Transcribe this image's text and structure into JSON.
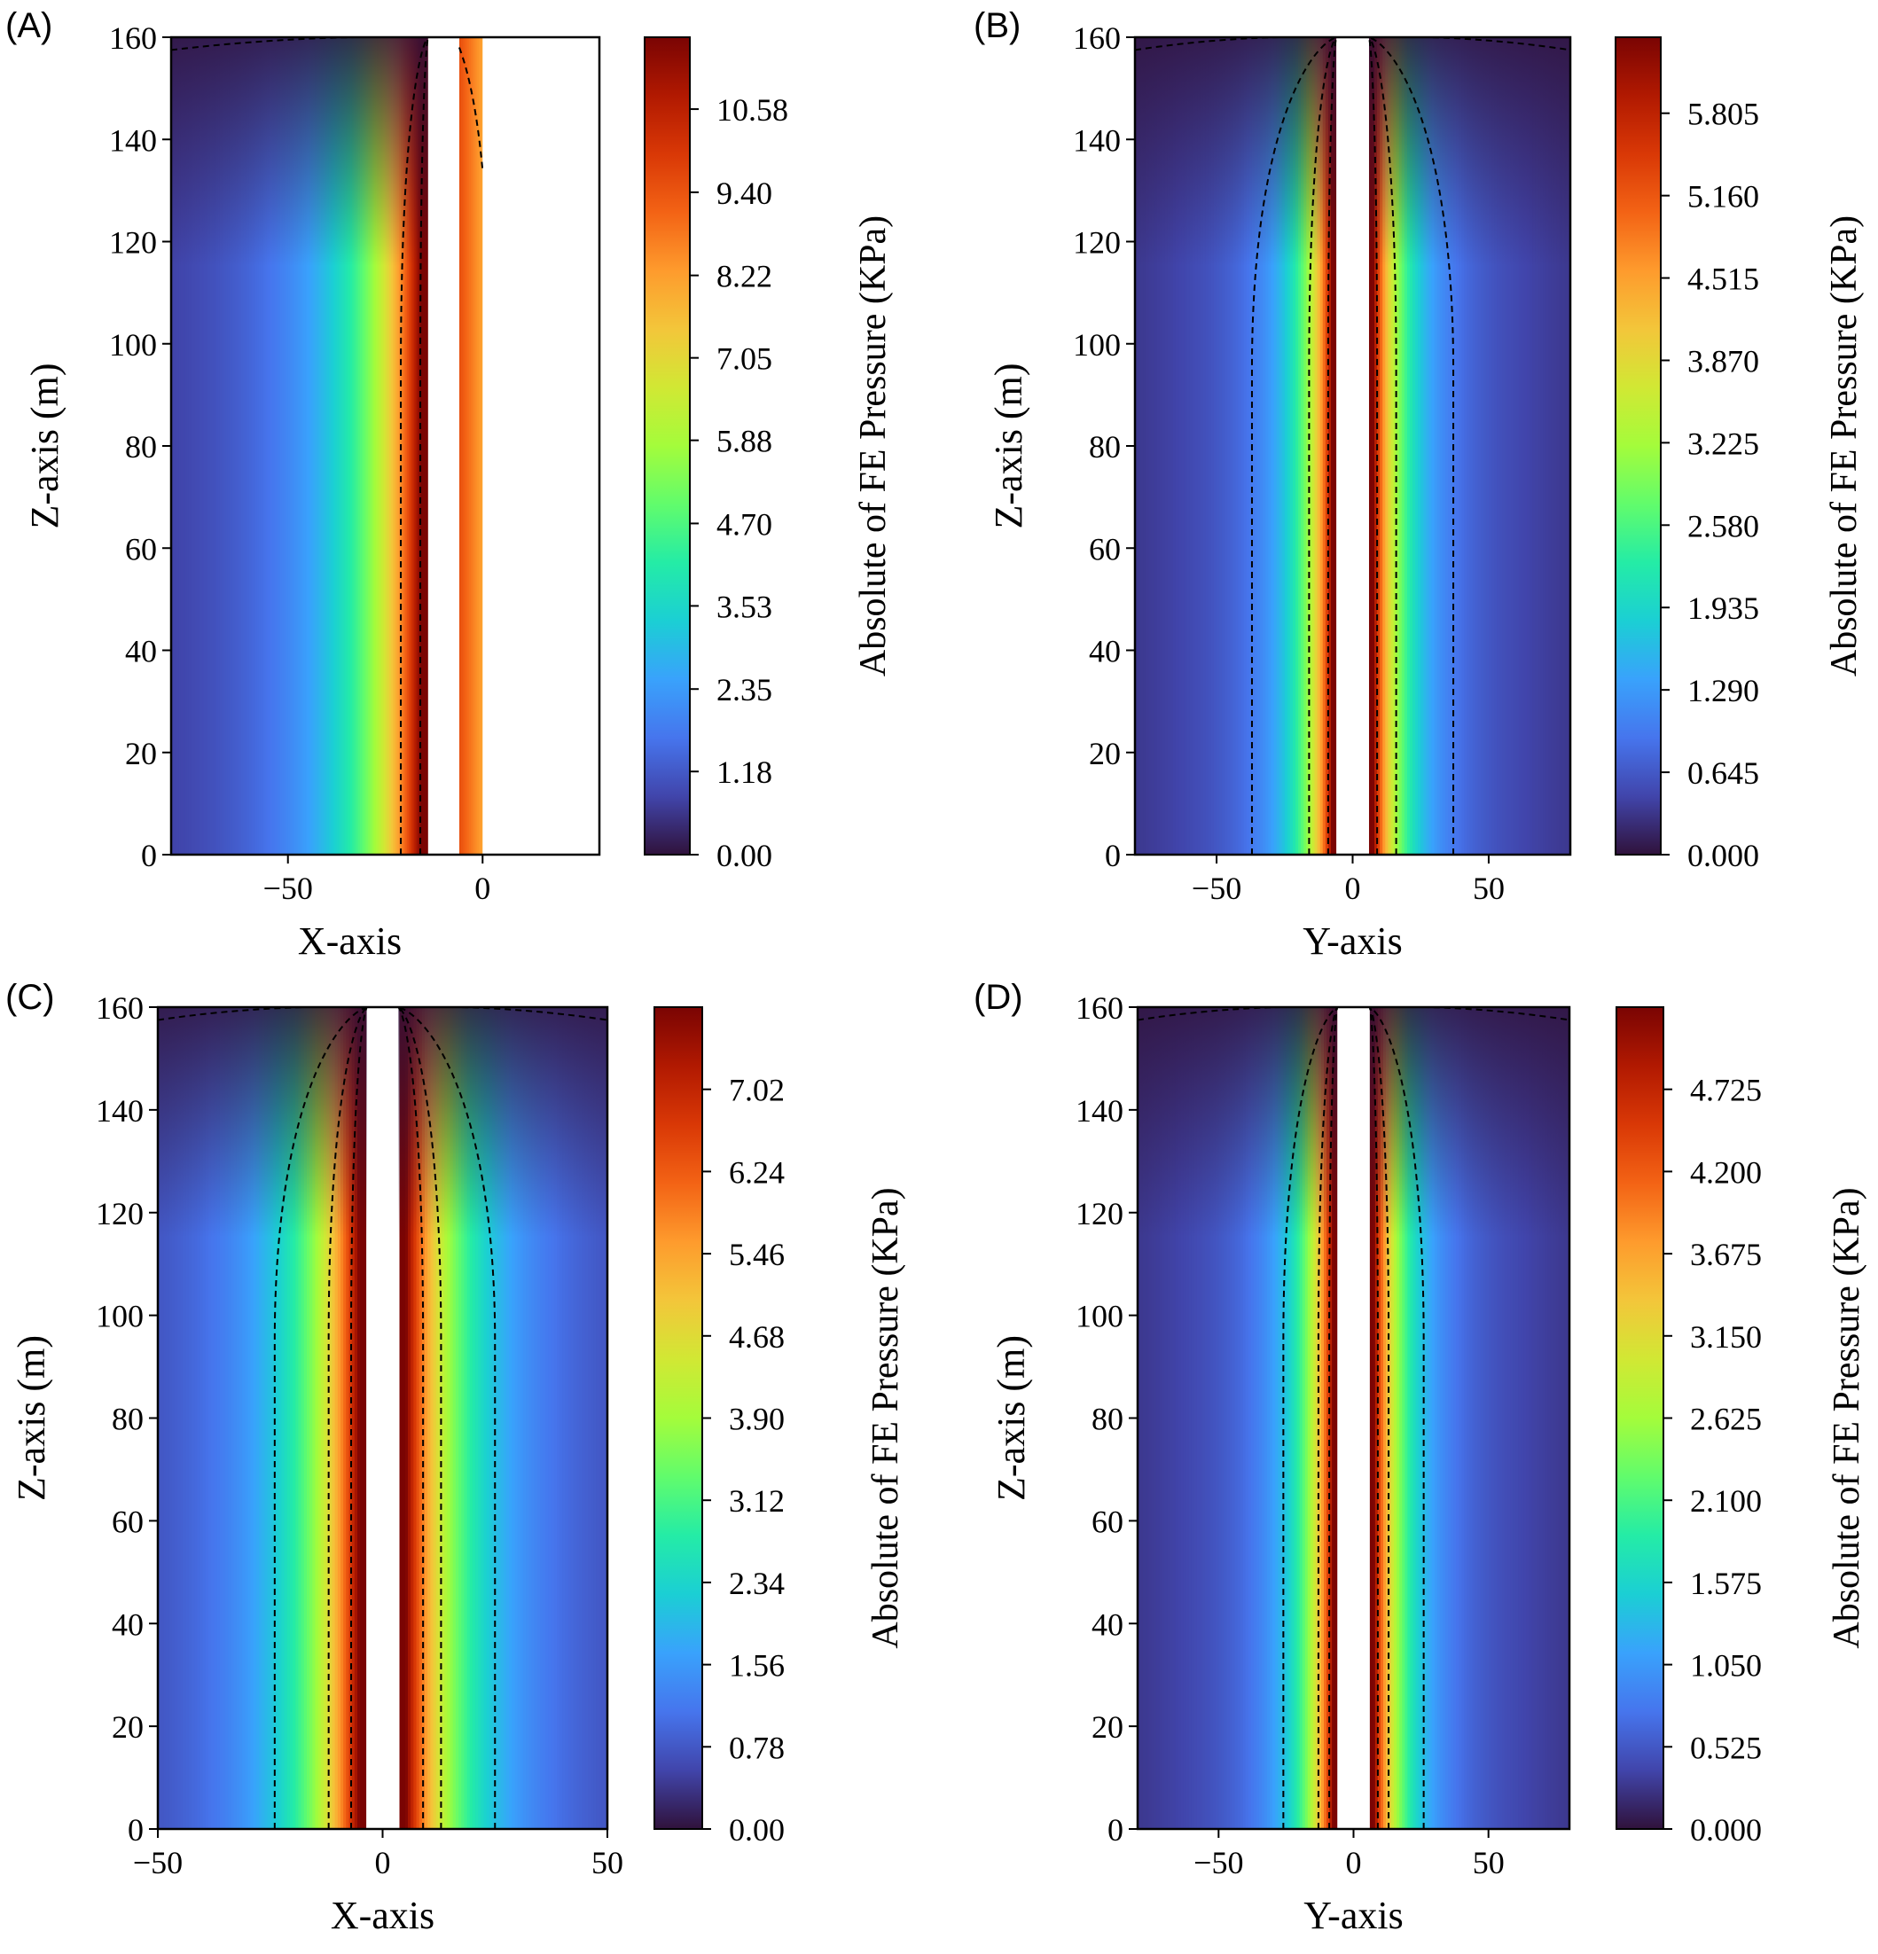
{
  "colors": {
    "colormap_turbo_stops": [
      "#30123b",
      "#4145ab",
      "#4675ed",
      "#39a2fc",
      "#1bcfd4",
      "#24eca6",
      "#61fc6c",
      "#a4fc3b",
      "#d1e834",
      "#f3c63a",
      "#fe9b2d",
      "#f36315",
      "#d93806",
      "#b11901",
      "#7a0403"
    ],
    "frame": "#000000",
    "pile": "#ffffff",
    "contour": "#000000"
  },
  "chart_data": [
    {
      "panel": "(A)",
      "type": "heatmap",
      "xlabel": "X-axis",
      "ylabel": "Z-axis (m)",
      "colorbar_label": "Absolute of FE Pressure (KPa)",
      "xlim": [
        -80,
        30
      ],
      "ylim": [
        0,
        160
      ],
      "x_ticks": [
        -50,
        0
      ],
      "x_tick_labels": [
        "−50",
        "0"
      ],
      "y_ticks": [
        0,
        20,
        40,
        60,
        80,
        100,
        120,
        140,
        160
      ],
      "y_tick_labels": [
        "0",
        "20",
        "40",
        "60",
        "80",
        "100",
        "120",
        "140",
        "160"
      ],
      "colorbar_range": [
        0,
        11.6
      ],
      "colorbar_ticks": [
        0,
        1.18,
        2.35,
        3.53,
        4.7,
        5.88,
        7.05,
        8.22,
        9.4,
        10.58
      ],
      "colorbar_tick_labels": [
        "0.00",
        "1.18",
        "2.35",
        "3.53",
        "4.70",
        "5.88",
        "7.05",
        "8.22",
        "9.40",
        "10.58"
      ],
      "pile_region_x": [
        -14,
        -6
      ],
      "field_extent_x": [
        -80,
        0
      ],
      "blank_region_x": [
        0,
        30
      ],
      "contour_x_at_base": [
        -21,
        -16,
        0
      ],
      "peak_value_near_pile": 11.0
    },
    {
      "panel": "(B)",
      "type": "heatmap",
      "xlabel": "Y-axis",
      "ylabel": "Z-axis (m)",
      "colorbar_label": "Absolute of FE Pressure (KPa)",
      "xlim": [
        -80,
        80
      ],
      "ylim": [
        0,
        160
      ],
      "x_ticks": [
        -50,
        0,
        50
      ],
      "x_tick_labels": [
        "−50",
        "0",
        "50"
      ],
      "y_ticks": [
        0,
        20,
        40,
        60,
        80,
        100,
        120,
        140,
        160
      ],
      "y_tick_labels": [
        "0",
        "20",
        "40",
        "60",
        "80",
        "100",
        "120",
        "140",
        "160"
      ],
      "colorbar_range": [
        0,
        6.4
      ],
      "colorbar_ticks": [
        0,
        0.645,
        1.29,
        1.935,
        2.58,
        3.225,
        3.87,
        4.515,
        5.16,
        5.805
      ],
      "colorbar_tick_labels": [
        "0.000",
        "0.645",
        "1.290",
        "1.935",
        "2.580",
        "3.225",
        "3.870",
        "4.515",
        "5.160",
        "5.805"
      ],
      "pile_region_x": [
        -6,
        6
      ],
      "contour_x_at_base": [
        -37,
        -16,
        -9,
        9,
        16,
        37
      ],
      "peak_value_near_pile": 6.1
    },
    {
      "panel": "(C)",
      "type": "heatmap",
      "xlabel": "X-axis",
      "ylabel": "Z-axis (m)",
      "colorbar_label": "Absolute of FE Pressure (KPa)",
      "xlim": [
        -50,
        50
      ],
      "ylim": [
        0,
        160
      ],
      "x_ticks": [
        -50,
        0,
        50
      ],
      "x_tick_labels": [
        "−50",
        "0",
        "50"
      ],
      "y_ticks": [
        0,
        20,
        40,
        60,
        80,
        100,
        120,
        140,
        160
      ],
      "y_tick_labels": [
        "0",
        "20",
        "40",
        "60",
        "80",
        "100",
        "120",
        "140",
        "160"
      ],
      "colorbar_range": [
        0,
        7.8
      ],
      "colorbar_ticks": [
        0,
        0.78,
        1.56,
        2.34,
        3.12,
        3.9,
        4.68,
        5.46,
        6.24,
        7.02
      ],
      "colorbar_tick_labels": [
        "0.00",
        "0.78",
        "1.56",
        "2.34",
        "3.12",
        "3.90",
        "4.68",
        "5.46",
        "6.24",
        "7.02"
      ],
      "pile_region_x": [
        -3.5,
        3.5
      ],
      "contour_x_at_base": [
        -24,
        -12,
        -7,
        9,
        13,
        25
      ],
      "peak_value_near_pile": 7.5
    },
    {
      "panel": "(D)",
      "type": "heatmap",
      "xlabel": "Y-axis",
      "ylabel": "Z-axis (m)",
      "colorbar_label": "Absolute of FE Pressure (KPa)",
      "xlim": [
        -80,
        80
      ],
      "ylim": [
        0,
        160
      ],
      "x_ticks": [
        -50,
        0,
        50
      ],
      "x_tick_labels": [
        "−50",
        "0",
        "50"
      ],
      "y_ticks": [
        0,
        20,
        40,
        60,
        80,
        100,
        120,
        140,
        160
      ],
      "y_tick_labels": [
        "0",
        "20",
        "40",
        "60",
        "80",
        "100",
        "120",
        "140",
        "160"
      ],
      "colorbar_range": [
        0,
        5.25
      ],
      "colorbar_ticks": [
        0,
        0.525,
        1.05,
        1.575,
        2.1,
        2.625,
        3.15,
        3.675,
        4.2,
        4.725
      ],
      "colorbar_tick_labels": [
        "0.000",
        "0.525",
        "1.050",
        "1.575",
        "2.100",
        "2.625",
        "3.150",
        "3.675",
        "4.200",
        "4.725"
      ],
      "pile_region_x": [
        -6,
        6
      ],
      "contour_x_at_base": [
        -26,
        -13,
        -9,
        9,
        13,
        26
      ],
      "peak_value_near_pile": 5.0
    }
  ]
}
